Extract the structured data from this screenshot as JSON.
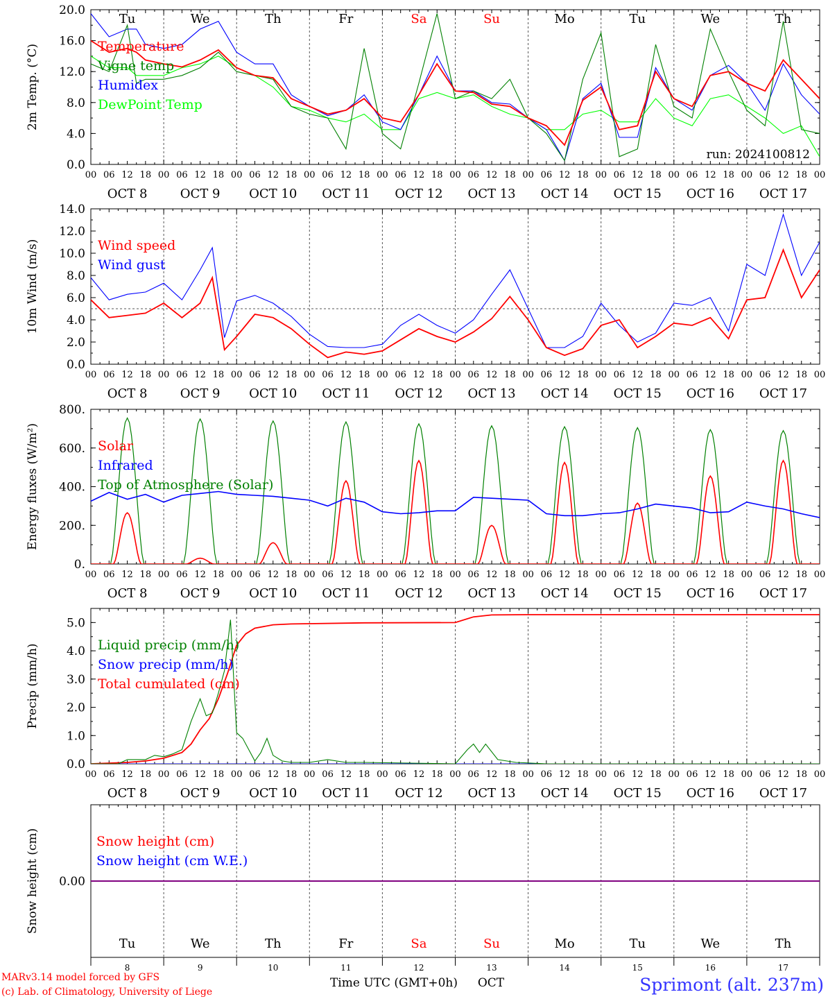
{
  "run_label": "run: 2024100812",
  "footer": {
    "credit_line1": "MARv3.14 model forced by GFS",
    "credit_line2": "(c) Lab. of Climatology, University of Liege",
    "time_axis_label": "Time UTC (GMT+0h)",
    "month_label": "OCT",
    "station": "Sprimont (alt. 237m)"
  },
  "days": {
    "weekday_labels": [
      "Tu",
      "We",
      "Th",
      "Fr",
      "Sa",
      "Su",
      "Mo",
      "Tu",
      "We",
      "Th"
    ],
    "date_labels": [
      "OCT  8",
      "OCT  9",
      "OCT 10",
      "OCT 11",
      "OCT 12",
      "OCT 13",
      "OCT 14",
      "OCT 15",
      "OCT 16",
      "OCT 17"
    ],
    "day_numbers": [
      "8",
      "9",
      "10",
      "11",
      "12",
      "13",
      "14",
      "15",
      "16",
      "17"
    ],
    "hour_ticks": [
      "00",
      "06",
      "12",
      "18"
    ],
    "final_tick": "00",
    "weekend_color": "#ff0000",
    "weekday_color": "#000000",
    "weekend_days": [
      "Sa",
      "Su"
    ]
  },
  "colors": {
    "red": "#ff0000",
    "green": "#008000",
    "blue": "#0000ff",
    "lightgreen": "#00ff00",
    "purple": "#800080"
  },
  "chart_data": [
    {
      "type": "line",
      "ylabel": "2m Temp. (°C)",
      "ylim": [
        0,
        20
      ],
      "yticks": [
        "0.0",
        "4.0",
        "8.0",
        "12.0",
        "16.0",
        "20.0"
      ],
      "x_unit": "hours since OCT 8 00 UTC",
      "series": [
        {
          "name": "Temperature",
          "color": "#ff0000",
          "x": [
            0,
            6,
            12,
            15,
            18,
            24,
            30,
            36,
            42,
            48,
            54,
            60,
            66,
            72,
            78,
            84,
            90,
            96,
            102,
            108,
            114,
            120,
            126,
            132,
            138,
            144,
            150,
            156,
            162,
            168,
            174,
            180,
            186,
            192,
            198,
            204,
            210,
            216,
            222,
            228,
            234,
            240
          ],
          "y": [
            16,
            14.5,
            15,
            14.5,
            13.5,
            13,
            12.6,
            13.5,
            14.8,
            12.5,
            11.5,
            11.2,
            8.5,
            7.5,
            6.5,
            7,
            8.5,
            6,
            5.5,
            9,
            13,
            9.5,
            9.3,
            7.8,
            7.5,
            6,
            5,
            2.5,
            8.3,
            10,
            4.5,
            5,
            12,
            8.5,
            7.5,
            11.5,
            12,
            10.5,
            9.5,
            13.5,
            11,
            8.5
          ]
        },
        {
          "name": "Vigne temp",
          "color": "#008000",
          "x": [
            0,
            6,
            12,
            15,
            18,
            24,
            30,
            36,
            42,
            48,
            54,
            60,
            66,
            72,
            78,
            84,
            90,
            96,
            102,
            108,
            114,
            120,
            126,
            132,
            138,
            144,
            150,
            156,
            162,
            168,
            174,
            180,
            186,
            192,
            198,
            204,
            210,
            216,
            222,
            228,
            234,
            240
          ],
          "y": [
            13,
            12,
            18,
            10.5,
            11,
            11,
            11.5,
            12.5,
            14.5,
            12,
            11.5,
            11,
            7.5,
            6.5,
            6,
            2,
            15,
            4,
            2,
            10.5,
            19.5,
            8.5,
            9.5,
            8.5,
            11,
            6,
            4,
            0.5,
            11,
            17,
            1,
            2,
            15.5,
            7.5,
            6,
            17.5,
            12,
            7,
            5,
            18.5,
            4.5,
            4
          ]
        },
        {
          "name": "Humidex",
          "color": "#0000ff",
          "x": [
            0,
            6,
            12,
            15,
            18,
            24,
            30,
            36,
            42,
            48,
            54,
            60,
            66,
            72,
            78,
            84,
            90,
            96,
            102,
            108,
            114,
            120,
            126,
            132,
            138,
            144,
            150,
            156,
            162,
            168,
            174,
            180,
            186,
            192,
            198,
            204,
            210,
            216,
            222,
            228,
            234,
            240
          ],
          "y": [
            19.5,
            16.5,
            17.5,
            17.5,
            15.5,
            15,
            15.5,
            17.5,
            18.5,
            14.5,
            13,
            13,
            9,
            7.5,
            6.3,
            7,
            9,
            5.5,
            4.5,
            9,
            14,
            9.5,
            9.5,
            8,
            7.8,
            6,
            4.5,
            0.5,
            8.5,
            10.5,
            3.5,
            3.5,
            12.5,
            8.5,
            7,
            11.5,
            12.8,
            10.5,
            7,
            13,
            9,
            6.5
          ]
        },
        {
          "name": "DewPoint Temp",
          "color": "#00ff00",
          "x": [
            0,
            6,
            12,
            15,
            18,
            24,
            30,
            36,
            42,
            48,
            54,
            60,
            66,
            72,
            78,
            84,
            90,
            96,
            102,
            108,
            114,
            120,
            126,
            132,
            138,
            144,
            150,
            156,
            162,
            168,
            174,
            180,
            186,
            192,
            198,
            204,
            210,
            216,
            222,
            228,
            234,
            240
          ],
          "y": [
            14,
            12.5,
            12.5,
            11.5,
            11.5,
            11.5,
            12.5,
            13,
            14,
            12.5,
            11.5,
            10,
            7.5,
            7,
            6,
            5.5,
            6.5,
            4.5,
            4.5,
            8.5,
            9.3,
            8.5,
            9,
            7.5,
            6.5,
            6,
            4.5,
            4.5,
            6.5,
            7,
            5.5,
            5.5,
            8.5,
            6,
            5,
            8.5,
            9,
            7.5,
            6,
            4,
            5,
            1
          ]
        }
      ]
    },
    {
      "type": "line",
      "ylabel": "10m Wind (m/s)",
      "ylim": [
        0,
        14
      ],
      "yticks": [
        "0.0",
        "2.0",
        "4.0",
        "6.0",
        "8.0",
        "10.0",
        "12.0",
        "14.0"
      ],
      "reference_line": 5,
      "x_unit": "hours since OCT 8 00 UTC",
      "series": [
        {
          "name": "Wind speed",
          "color": "#ff0000",
          "x": [
            0,
            6,
            12,
            18,
            24,
            30,
            36,
            40,
            44,
            48,
            54,
            60,
            66,
            72,
            78,
            84,
            90,
            96,
            102,
            108,
            114,
            120,
            126,
            132,
            138,
            144,
            150,
            156,
            162,
            168,
            174,
            180,
            186,
            192,
            198,
            204,
            210,
            216,
            222,
            228,
            234,
            240
          ],
          "y": [
            5.8,
            4.2,
            4.4,
            4.6,
            5.5,
            4.2,
            5.5,
            7.8,
            1.3,
            2.5,
            4.5,
            4.2,
            3.2,
            1.8,
            0.6,
            1.1,
            0.9,
            1.2,
            2.2,
            3.2,
            2.5,
            2.0,
            2.9,
            4.1,
            6.1,
            4.0,
            1.5,
            0.8,
            1.4,
            3.5,
            4.0,
            1.5,
            2.5,
            3.7,
            3.5,
            4.2,
            2.3,
            5.8,
            6.0,
            10.3,
            6.0,
            8.5
          ]
        },
        {
          "name": "Wind gust",
          "color": "#0000ff",
          "x": [
            0,
            6,
            12,
            18,
            24,
            30,
            36,
            40,
            44,
            48,
            54,
            60,
            66,
            72,
            78,
            84,
            90,
            96,
            102,
            108,
            114,
            120,
            126,
            132,
            138,
            144,
            150,
            156,
            162,
            168,
            174,
            180,
            186,
            192,
            198,
            204,
            210,
            216,
            222,
            228,
            234,
            240
          ],
          "y": [
            7.8,
            5.8,
            6.3,
            6.5,
            7.3,
            5.8,
            8.5,
            10.5,
            2.4,
            5.7,
            6.2,
            5.5,
            4.3,
            2.7,
            1.6,
            1.5,
            1.5,
            1.8,
            3.5,
            4.5,
            3.5,
            2.8,
            4.0,
            6.3,
            8.5,
            5.0,
            1.5,
            1.5,
            2.5,
            5.5,
            3.5,
            2.0,
            2.8,
            5.5,
            5.3,
            6.0,
            3.0,
            9.0,
            8.0,
            13.5,
            8.0,
            11.0
          ]
        }
      ]
    },
    {
      "type": "line",
      "ylabel": "Energy fluxes (W/m²)",
      "ylim": [
        0,
        800
      ],
      "yticks": [
        "0.",
        "200.",
        "400.",
        "600.",
        "800."
      ],
      "x_unit": "hours since OCT 8 00 UTC",
      "day_peaks": {
        "toa_solar": [
          755,
          750,
          740,
          735,
          725,
          715,
          710,
          705,
          695,
          690
        ],
        "solar": [
          265,
          30,
          110,
          430,
          535,
          200,
          525,
          315,
          455,
          535
        ],
        "toa_solar_window": [
          6.5,
          17.5
        ],
        "solar_window": [
          7.5,
          16.5
        ]
      },
      "series": [
        {
          "name": "Solar",
          "color": "#ff0000"
        },
        {
          "name": "Infrared",
          "color": "#0000ff",
          "x": [
            0,
            6,
            12,
            18,
            24,
            30,
            36,
            42,
            48,
            54,
            60,
            66,
            72,
            78,
            84,
            90,
            96,
            102,
            108,
            114,
            120,
            126,
            132,
            138,
            144,
            150,
            156,
            162,
            168,
            174,
            180,
            186,
            192,
            198,
            204,
            210,
            216,
            222,
            228,
            234,
            240
          ],
          "y": [
            325,
            370,
            335,
            360,
            320,
            355,
            365,
            375,
            360,
            355,
            350,
            340,
            330,
            300,
            340,
            320,
            270,
            260,
            265,
            275,
            275,
            345,
            340,
            335,
            330,
            260,
            250,
            250,
            260,
            265,
            285,
            310,
            300,
            290,
            265,
            270,
            320,
            300,
            285,
            260,
            240
          ]
        },
        {
          "name": "Top of Atmosphere (Solar)",
          "color": "#008000"
        }
      ]
    },
    {
      "type": "line",
      "ylabel": "Precip (mm/h)",
      "ylim": [
        0,
        5.5
      ],
      "yticks": [
        "0.0",
        "1.0",
        "2.0",
        "3.0",
        "4.0",
        "5.0"
      ],
      "x_unit": "hours since OCT 8 00 UTC",
      "series": [
        {
          "name": "Liquid precip (mm/h)",
          "color": "#008000",
          "x": [
            0,
            9,
            12,
            15,
            18,
            21,
            24,
            27,
            30,
            33,
            36,
            38,
            40,
            42,
            44,
            46,
            48,
            50,
            54,
            56,
            58,
            60,
            63,
            66,
            72,
            78,
            84,
            90,
            120,
            124,
            126,
            128,
            130,
            134,
            140,
            150,
            240
          ],
          "y": [
            0,
            0,
            0.15,
            0.15,
            0.15,
            0.3,
            0.25,
            0.35,
            0.5,
            1.5,
            2.3,
            1.7,
            1.8,
            2.5,
            3.3,
            5.1,
            1.1,
            0.9,
            0.1,
            0.4,
            0.9,
            0.3,
            0.1,
            0.05,
            0.05,
            0.15,
            0.05,
            0.05,
            0,
            0.5,
            0.7,
            0.4,
            0.7,
            0.15,
            0.05,
            0,
            0
          ]
        },
        {
          "name": "Snow precip (mm/h)",
          "color": "#0000ff",
          "x": [
            0,
            240
          ],
          "y": [
            0,
            0
          ]
        },
        {
          "name": "Total cumulated (cm)",
          "color": "#ff0000",
          "x": [
            0,
            12,
            18,
            24,
            30,
            33,
            36,
            39,
            42,
            45,
            48,
            51,
            54,
            60,
            66,
            72,
            90,
            120,
            126,
            132,
            144,
            240
          ],
          "y": [
            0,
            0.05,
            0.1,
            0.2,
            0.4,
            0.7,
            1.2,
            1.6,
            2.3,
            3.2,
            4.2,
            4.6,
            4.8,
            4.92,
            4.95,
            4.96,
            4.99,
            5.0,
            5.2,
            5.27,
            5.28,
            5.28
          ]
        }
      ]
    },
    {
      "type": "line",
      "ylabel": "Snow height (cm)",
      "yticks": [
        "0.00"
      ],
      "x_unit": "hours since OCT 8 00 UTC",
      "series": [
        {
          "name": "Snow height (cm)",
          "color": "#ff0000",
          "x": [
            0,
            240
          ],
          "y": [
            0,
            0
          ]
        },
        {
          "name": "Snow height (cm W.E.)",
          "color": "#0000ff",
          "x": [
            0,
            240
          ],
          "y": [
            0,
            0
          ]
        }
      ]
    }
  ]
}
